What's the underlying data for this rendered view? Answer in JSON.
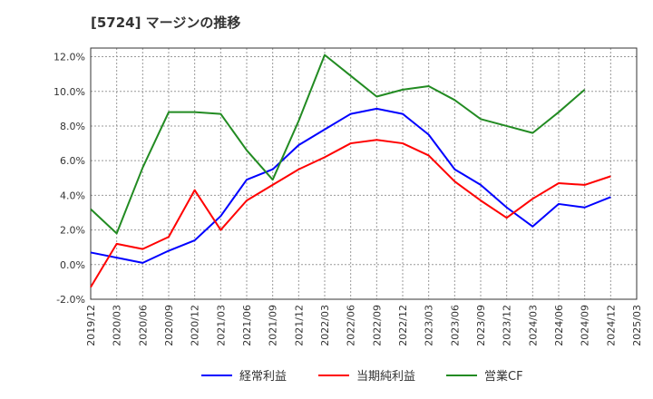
{
  "chart_data": {
    "type": "line",
    "title": "[5724]  マージンの推移",
    "xlabel": "",
    "ylabel": "",
    "x": [
      "2019/12",
      "2020/03",
      "2020/06",
      "2020/09",
      "2020/12",
      "2021/03",
      "2021/06",
      "2021/09",
      "2021/12",
      "2022/03",
      "2022/06",
      "2022/09",
      "2022/12",
      "2023/03",
      "2023/06",
      "2023/09",
      "2023/12",
      "2024/03",
      "2024/06",
      "2024/09",
      "2024/12",
      "2025/03"
    ],
    "ylim": [
      -2.0,
      12.5
    ],
    "yticks": [
      -2.0,
      0.0,
      2.0,
      4.0,
      6.0,
      8.0,
      10.0,
      12.0
    ],
    "yticklabels": [
      "-2.0%",
      "0.0%",
      "2.0%",
      "4.0%",
      "6.0%",
      "8.0%",
      "10.0%",
      "12.0%"
    ],
    "grid": true,
    "legend_position": "bottom",
    "series": [
      {
        "name": "経常利益",
        "color": "#0000ff",
        "values": [
          0.7,
          0.4,
          0.1,
          0.8,
          1.4,
          2.8,
          4.9,
          5.5,
          6.9,
          7.8,
          8.7,
          9.0,
          8.7,
          7.5,
          5.5,
          4.6,
          3.3,
          2.2,
          3.5,
          3.3,
          3.9,
          null
        ]
      },
      {
        "name": "当期純利益",
        "color": "#ff0000",
        "values": [
          -1.3,
          1.2,
          0.9,
          1.6,
          4.3,
          2.0,
          3.7,
          4.6,
          5.5,
          6.2,
          7.0,
          7.2,
          7.0,
          6.3,
          4.8,
          3.7,
          2.7,
          3.8,
          4.7,
          4.6,
          5.1,
          null
        ]
      },
      {
        "name": "営業CF",
        "color": "#228b22",
        "values": [
          3.2,
          1.8,
          5.6,
          8.8,
          8.8,
          8.7,
          6.6,
          4.9,
          8.3,
          12.1,
          10.9,
          9.7,
          10.1,
          10.3,
          9.5,
          8.4,
          8.0,
          7.6,
          8.8,
          10.1,
          null,
          null
        ]
      }
    ]
  }
}
